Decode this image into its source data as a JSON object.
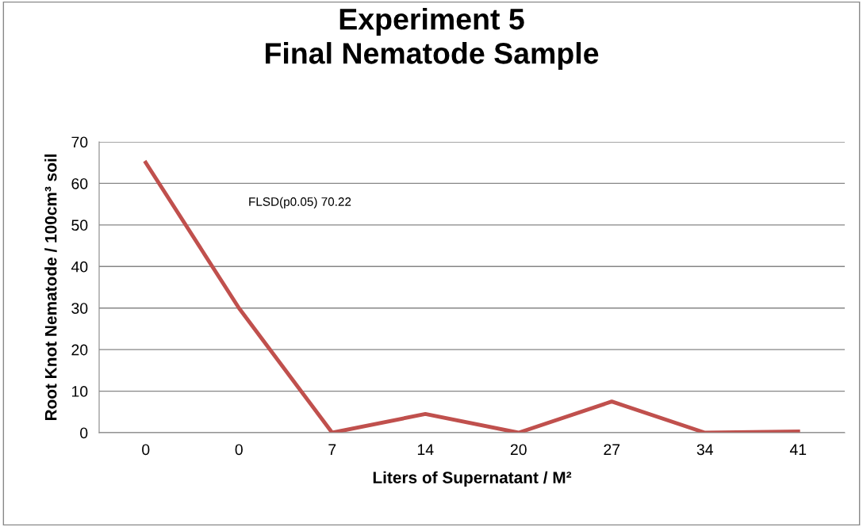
{
  "chart_data": {
    "type": "line",
    "title": "Experiment 5\nFinal Nematode Sample",
    "xlabel": "Liters of Supernatant / M²",
    "ylabel": "Root Knot Nematode / 100cm³ soil",
    "categories": [
      "0",
      "0",
      "7",
      "14",
      "20",
      "27",
      "34",
      "41"
    ],
    "series": [
      {
        "color": "#c0504d",
        "values": [
          65,
          30,
          0,
          4.5,
          0,
          7.5,
          0,
          0.3
        ]
      }
    ],
    "ylim": [
      0,
      70
    ],
    "yticks": [
      0,
      10,
      20,
      30,
      40,
      50,
      60,
      70
    ],
    "grid": "y",
    "legend": false,
    "marker": "none",
    "line_style": "solid",
    "annotations": [
      "FLSD(p0.05) 70.22"
    ]
  }
}
